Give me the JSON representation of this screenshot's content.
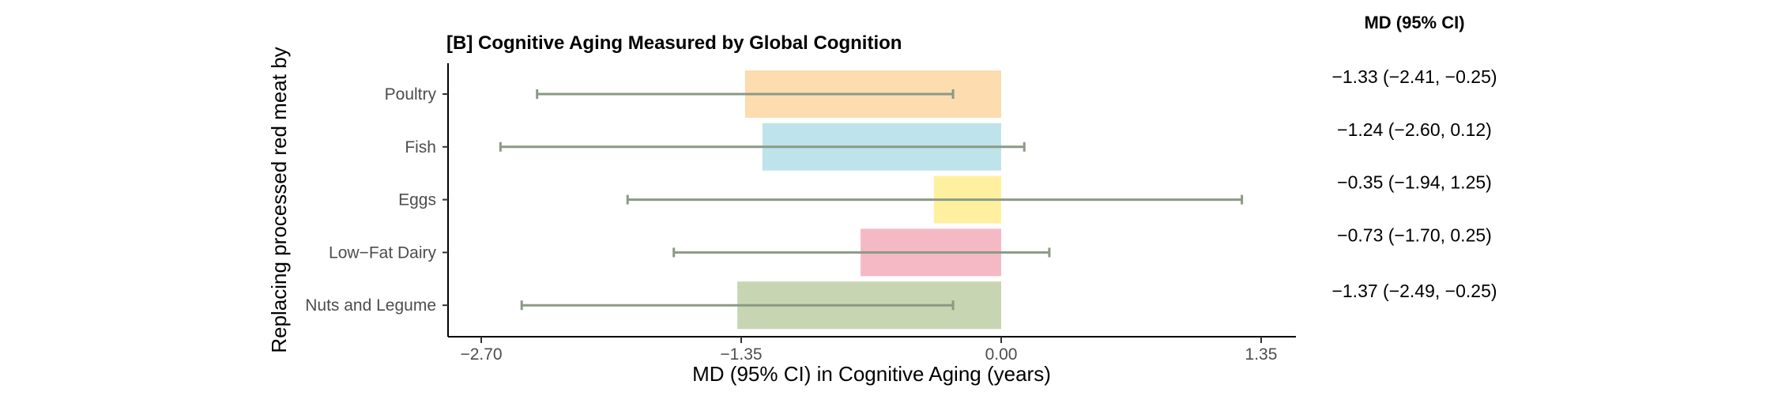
{
  "chart_data": {
    "type": "bar",
    "orientation": "horizontal",
    "title": "[B] Cognitive Aging Measured by Global Cognition",
    "xlabel": "MD (95% CI) in Cognitive Aging (years)",
    "ylabel": "Replacing processed red meat by",
    "xlim": [
      -2.95,
      1.6
    ],
    "xticks": [
      -2.7,
      -1.35,
      0.0,
      1.35
    ],
    "xtick_labels": [
      "−2.70",
      "−1.35",
      "0.00",
      "1.35"
    ],
    "grid": false,
    "legend": "none",
    "table_header": "MD (95% CI)",
    "categories": [
      "Poultry",
      "Fish",
      "Eggs",
      "Low−Fat Dairy",
      "Nuts and Legume"
    ],
    "values": [
      -1.33,
      -1.24,
      -0.35,
      -0.73,
      -1.37
    ],
    "ci_low": [
      -2.41,
      -2.6,
      -1.94,
      -1.7,
      -2.49
    ],
    "ci_high": [
      -0.25,
      0.12,
      1.25,
      0.25,
      -0.25
    ],
    "md_text": [
      "−1.33 (−2.41, −0.25)",
      "−1.24 (−2.60, 0.12)",
      "−0.35 (−1.94, 1.25)",
      "−0.73 (−1.70, 0.25)",
      "−1.37 (−2.49, −0.25)"
    ],
    "colors": [
      "#fddcb0",
      "#bfe3ea",
      "#fff0a0",
      "#f5b9c5",
      "#c7d5b2"
    ],
    "errorbar_color": "#8a9a85"
  }
}
